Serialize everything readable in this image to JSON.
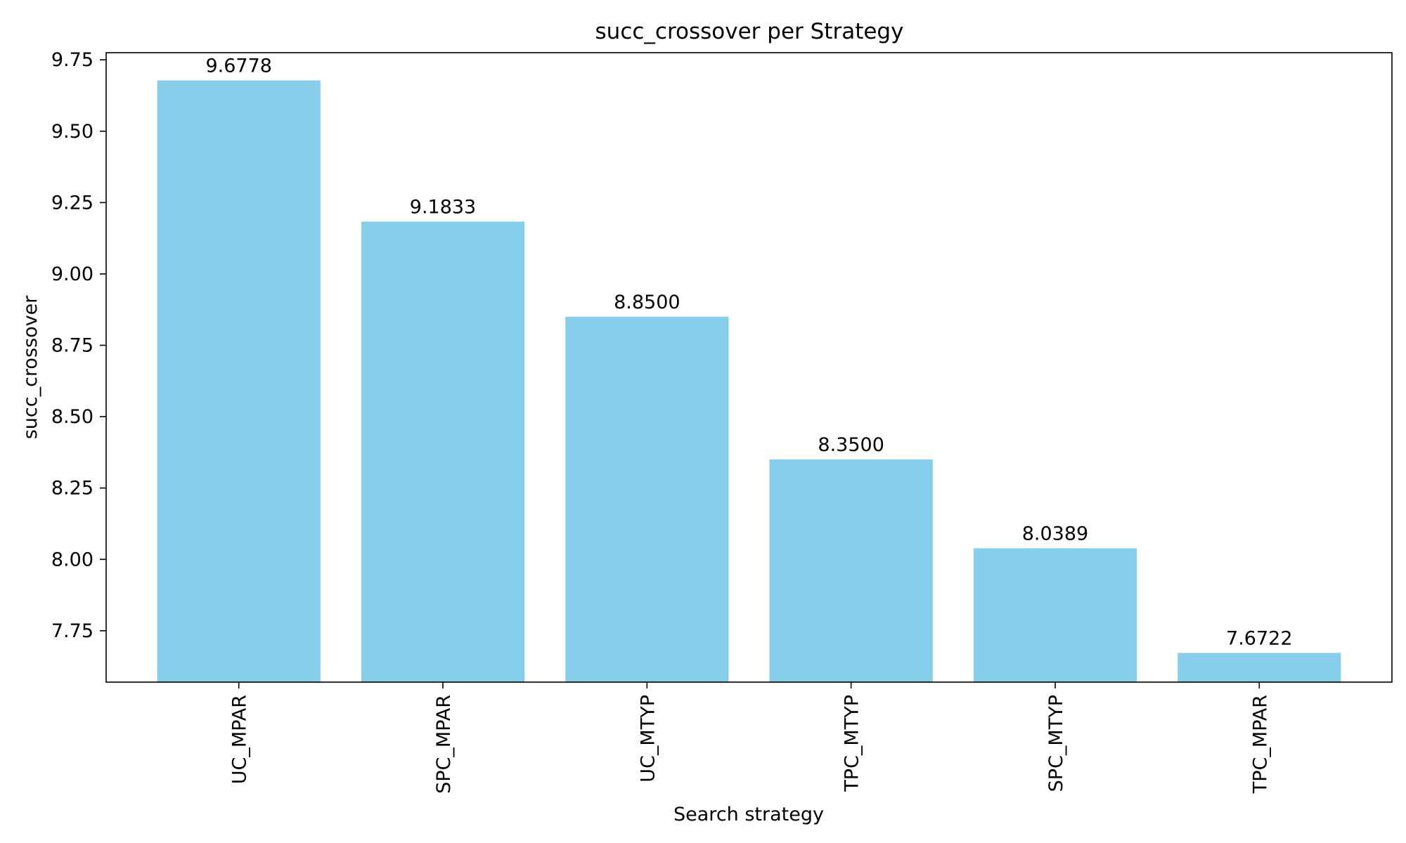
{
  "chart_data": {
    "type": "bar",
    "title": "succ_crossover per Strategy",
    "xlabel": "Search strategy",
    "ylabel": "succ_crossover",
    "categories": [
      "UC_MPAR",
      "SPC_MPAR",
      "UC_MTYP",
      "TPC_MTYP",
      "SPC_MTYP",
      "TPC_MPAR"
    ],
    "values": [
      9.6778,
      9.1833,
      8.85,
      8.35,
      8.0389,
      7.6722
    ],
    "value_labels": [
      "9.6778",
      "9.1833",
      "8.8500",
      "8.3500",
      "8.0389",
      "7.6722"
    ],
    "ylim": [
      7.57,
      9.775
    ],
    "yticks": [
      7.75,
      8.0,
      8.25,
      8.5,
      8.75,
      9.0,
      9.25,
      9.5,
      9.75
    ],
    "ytick_labels": [
      "7.75",
      "8.00",
      "8.25",
      "8.50",
      "8.75",
      "9.00",
      "9.25",
      "9.50",
      "9.75"
    ],
    "bar_color": "#87CEEB",
    "grid": false,
    "legend": "none"
  }
}
